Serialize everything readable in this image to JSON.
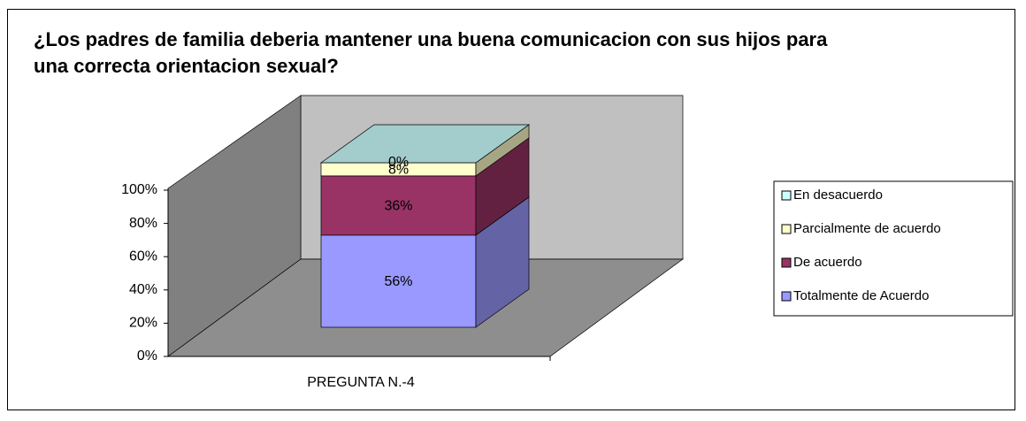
{
  "chart_data": {
    "type": "bar3d_stacked",
    "title": "¿Los padres de familia deberia mantener una buena comunicacion con sus hijos para una correcta orientacion sexual?",
    "categories": [
      "PREGUNTA N.-4"
    ],
    "series": [
      {
        "name": "Totalmente de Acuerdo",
        "color": "#9999ff",
        "values": [
          56
        ],
        "value_labels": [
          "56%"
        ]
      },
      {
        "name": "De acuerdo",
        "color": "#993366",
        "values": [
          36
        ],
        "value_labels": [
          "36%"
        ]
      },
      {
        "name": "Parcialmente de acuerdo",
        "color": "#ffffcc",
        "values": [
          8
        ],
        "value_labels": [
          "8%"
        ]
      },
      {
        "name": "En desacuerdo",
        "color": "#ccffff",
        "values": [
          0
        ],
        "value_labels": [
          "0%"
        ]
      }
    ],
    "ylim": [
      0,
      100
    ],
    "yticks": [
      {
        "value": 0,
        "label": "0%"
      },
      {
        "value": 20,
        "label": "20%"
      },
      {
        "value": 40,
        "label": "40%"
      },
      {
        "value": 60,
        "label": "60%"
      },
      {
        "value": 80,
        "label": "80%"
      },
      {
        "value": 100,
        "label": "100%"
      }
    ],
    "legend": "right"
  }
}
